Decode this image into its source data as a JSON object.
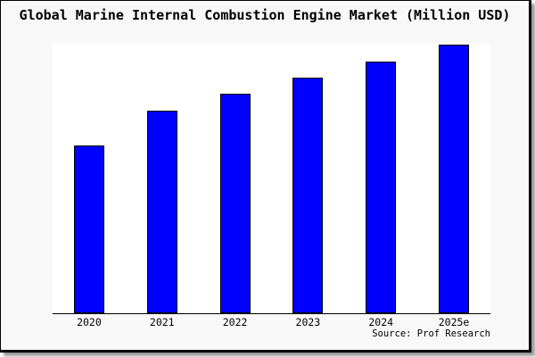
{
  "colors": {
    "bar_fill": "#0000ff",
    "bar_border": "#000000",
    "panel_background": "#f8f8f8",
    "plot_background": "#ffffff",
    "axis_line": "#000000",
    "frame_border": "#000000",
    "shadow": "#9a9a9a",
    "text": "#000000"
  },
  "chart_data": {
    "type": "bar",
    "title": "Global Marine Internal Combustion Engine Market (Million USD)",
    "categories": [
      "2020",
      "2021",
      "2022",
      "2023",
      "2024",
      "2025e"
    ],
    "values": [
      62.6,
      75.3,
      81.6,
      87.7,
      93.7,
      100
    ],
    "value_note": "no y-axis or value labels shown; values are relative bar heights with 2025e = 100",
    "xlabel": "",
    "ylabel": "",
    "ylim": [
      0,
      100
    ],
    "grid": false,
    "legend": null,
    "y_axis_visible": false,
    "x_axis_line_visible": true,
    "source": "Source: Prof Research"
  }
}
